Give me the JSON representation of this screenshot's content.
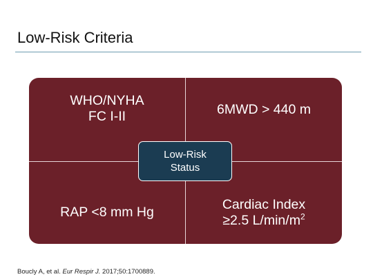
{
  "title": "Low-Risk Criteria",
  "quadrants": [
    {
      "lines": [
        "WHO/NYHA",
        "FC I-II"
      ]
    },
    {
      "lines": [
        "6MWD > 440 m"
      ]
    },
    {
      "lines": [
        "RAP <8 mm Hg"
      ]
    },
    {
      "lines": [
        "Cardiac Index",
        "≥2.5 L/min/m"
      ],
      "superscript": "2"
    }
  ],
  "center": {
    "lines": [
      "Low-Risk",
      "Status"
    ]
  },
  "citation": {
    "authors": "Boucly A, et al.",
    "journal": "Eur Respir J.",
    "reference": "2017;50:1700889."
  }
}
